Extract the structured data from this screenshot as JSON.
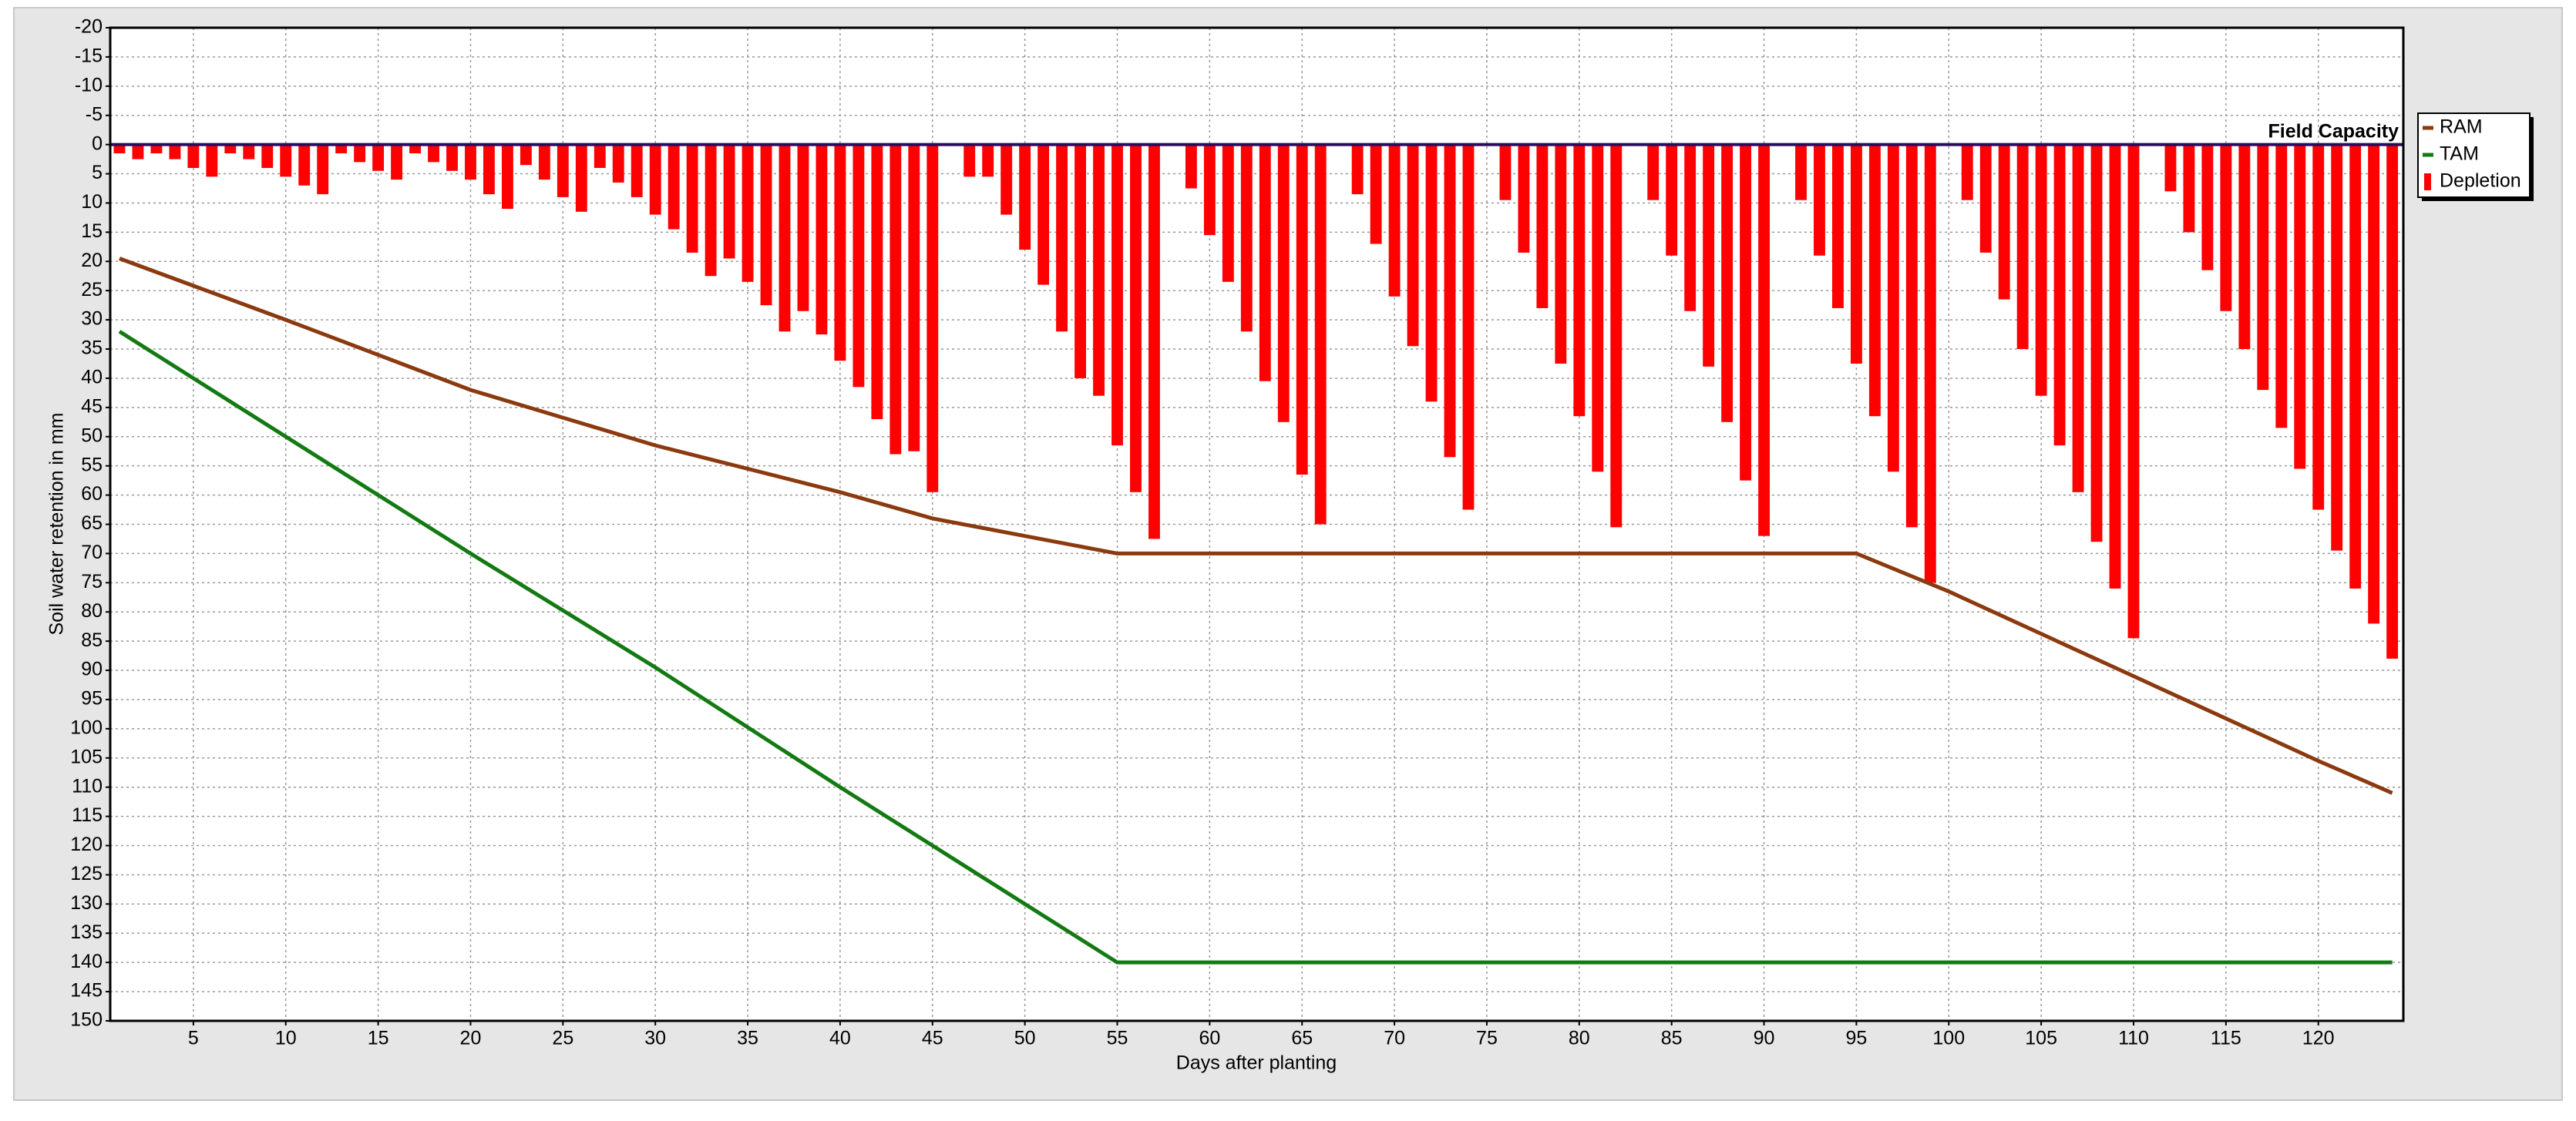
{
  "chart_data": {
    "type": "bar-line",
    "xlabel": "Days after planting",
    "ylabel": "Soil water retention in mm",
    "annotation": "Field Capacity",
    "xlim": [
      0.5,
      124.6
    ],
    "xticks": [
      5,
      10,
      15,
      20,
      25,
      30,
      35,
      40,
      45,
      50,
      55,
      60,
      65,
      70,
      75,
      80,
      85,
      90,
      95,
      100,
      105,
      110,
      115,
      120
    ],
    "ylim": [
      -20,
      150
    ],
    "yticks": [
      -20,
      -15,
      -10,
      -5,
      0,
      5,
      10,
      15,
      20,
      25,
      30,
      35,
      40,
      45,
      50,
      55,
      60,
      65,
      70,
      75,
      80,
      85,
      90,
      95,
      100,
      105,
      110,
      115,
      120,
      125,
      130,
      135,
      140,
      145,
      150
    ],
    "y_inverted": true,
    "grid": true,
    "legend": "right",
    "series": [
      {
        "name": "RAM",
        "color": "#8b3a0f",
        "kind": "line",
        "x": [
          1,
          10,
          20,
          30,
          40,
          45,
          50,
          55,
          95,
          100,
          110,
          120,
          124
        ],
        "values": [
          19.5,
          30,
          42,
          51.5,
          59.5,
          64,
          67,
          70,
          70,
          76.5,
          91,
          105.5,
          111
        ]
      },
      {
        "name": "TAM",
        "color": "#137a13",
        "kind": "line",
        "x": [
          1,
          10,
          20,
          30,
          40,
          45,
          50,
          55,
          124
        ],
        "values": [
          32,
          50,
          70,
          89.5,
          110,
          120,
          130,
          140,
          140
        ]
      },
      {
        "name": "Depletion",
        "color": "#ff0000",
        "kind": "bar",
        "x": [
          1,
          2,
          3,
          4,
          5,
          6,
          7,
          8,
          9,
          10,
          11,
          12,
          13,
          14,
          15,
          16,
          17,
          18,
          19,
          20,
          21,
          22,
          23,
          24,
          25,
          26,
          27,
          28,
          29,
          30,
          31,
          32,
          33,
          34,
          35,
          36,
          37,
          38,
          39,
          40,
          41,
          42,
          43,
          44,
          45,
          46,
          47,
          48,
          49,
          50,
          51,
          52,
          53,
          54,
          55,
          56,
          57,
          58,
          59,
          60,
          61,
          62,
          63,
          64,
          65,
          66,
          67,
          68,
          69,
          70,
          71,
          72,
          73,
          74,
          75,
          76,
          77,
          78,
          79,
          80,
          81,
          82,
          83,
          84,
          85,
          86,
          87,
          88,
          89,
          90,
          91,
          92,
          93,
          94,
          95,
          96,
          97,
          98,
          99,
          100,
          101,
          102,
          103,
          104,
          105,
          106,
          107,
          108,
          109,
          110,
          111,
          112,
          113,
          114,
          115,
          116,
          117,
          118,
          119,
          120,
          121,
          122,
          123,
          124
        ],
        "values": [
          1.5,
          2.5,
          1.5,
          2.5,
          4,
          5.5,
          1.5,
          2.5,
          4,
          5.5,
          7,
          8.5,
          1.5,
          3,
          4.5,
          6,
          1.5,
          3,
          4.5,
          6,
          8.5,
          11,
          3.5,
          6,
          9,
          11.5,
          4,
          6.5,
          9,
          12,
          14.5,
          18.5,
          22.5,
          19.5,
          23.5,
          27.5,
          32,
          28.5,
          32.5,
          37,
          41.5,
          47,
          53,
          52.5,
          59.5,
          0,
          5.5,
          5.5,
          12,
          18,
          24,
          32,
          40,
          43,
          51.5,
          59.5,
          67.5,
          0,
          7.5,
          15.5,
          23.5,
          32,
          40.5,
          47.5,
          56.5,
          65,
          0,
          8.5,
          17,
          26,
          34.5,
          44,
          53.5,
          62.5,
          0,
          9.5,
          18.5,
          28,
          37.5,
          46.5,
          56,
          65.5,
          0,
          9.5,
          19,
          28.5,
          38,
          47.5,
          57.5,
          67,
          0,
          9.5,
          19,
          28,
          37.5,
          46.5,
          56,
          65.5,
          75,
          0,
          9.5,
          18.5,
          26.5,
          35,
          43,
          51.5,
          59.5,
          68,
          76,
          84.5,
          0,
          8,
          15,
          21.5,
          28.5,
          35,
          42,
          48.5,
          55.5,
          62.5,
          69.5,
          76,
          82,
          88
        ]
      }
    ]
  }
}
